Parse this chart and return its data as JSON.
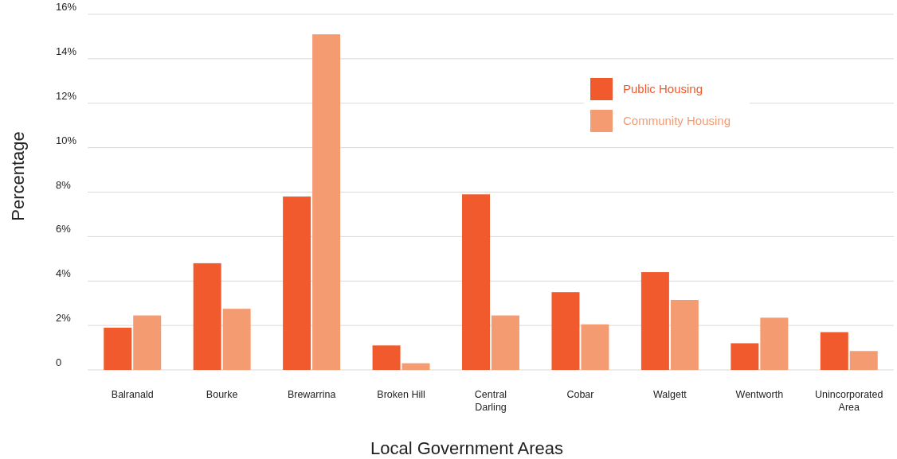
{
  "chart_data": {
    "type": "bar",
    "xlabel": "Local Government Areas",
    "ylabel": "Percentage",
    "categories": [
      "Balranald",
      "Bourke",
      "Brewarrina",
      "Broken Hill",
      "Central Darling",
      "Cobar",
      "Walgett",
      "Wentworth",
      "Unincorporated Area"
    ],
    "series": [
      {
        "name": "Public Housing",
        "color": "#f05a2c",
        "values": [
          1.9,
          4.8,
          7.8,
          1.1,
          7.9,
          3.5,
          4.4,
          1.2,
          1.7
        ]
      },
      {
        "name": "Community Housing",
        "color": "#f59b72",
        "values": [
          2.45,
          2.75,
          15.1,
          0.3,
          2.45,
          2.05,
          3.15,
          2.35,
          0.85
        ]
      }
    ],
    "ylim": [
      0,
      16
    ],
    "yticks": [
      0,
      {
        "value": 2,
        "label": "2%"
      },
      {
        "value": 4,
        "label": "4%"
      },
      {
        "value": 6,
        "label": "6%"
      },
      {
        "value": 8,
        "label": "8%"
      },
      {
        "value": 10,
        "label": "10%"
      },
      {
        "value": 12,
        "label": "12%"
      },
      {
        "value": 14,
        "label": "14%"
      },
      {
        "value": 16,
        "label": "16%"
      }
    ],
    "grid": "y",
    "legend": "top right"
  }
}
